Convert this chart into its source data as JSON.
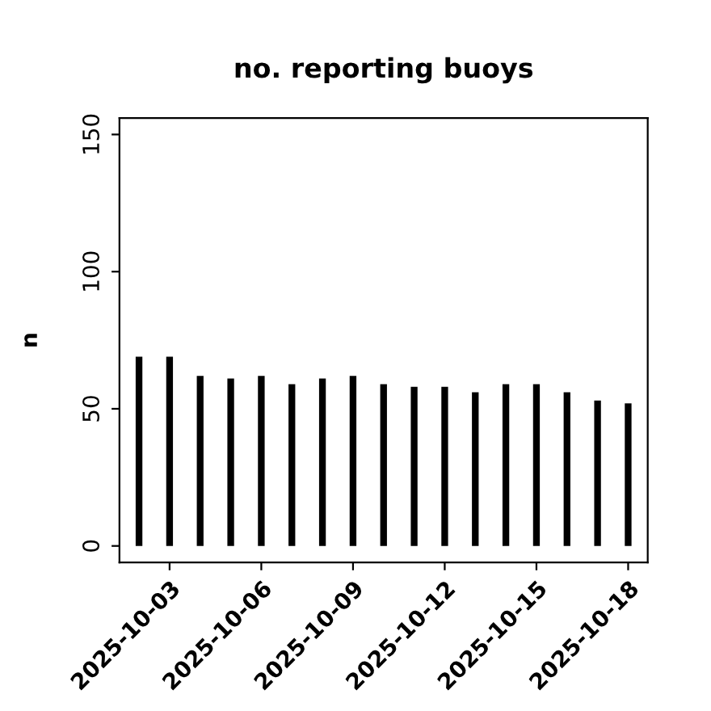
{
  "chart_data": {
    "type": "bar",
    "title": "no. reporting buoys",
    "ylabel": "n",
    "x": [
      "2025-10-02",
      "2025-10-03",
      "2025-10-04",
      "2025-10-05",
      "2025-10-06",
      "2025-10-07",
      "2025-10-08",
      "2025-10-09",
      "2025-10-10",
      "2025-10-11",
      "2025-10-12",
      "2025-10-13",
      "2025-10-14",
      "2025-10-15",
      "2025-10-16",
      "2025-10-17",
      "2025-10-18"
    ],
    "values": [
      69,
      69,
      62,
      61,
      62,
      59,
      61,
      62,
      59,
      58,
      58,
      56,
      59,
      59,
      56,
      53,
      52
    ],
    "color": "#000000",
    "xlim": [
      "2025-10-01T08:38",
      "2025-10-18T15:22"
    ],
    "xticks": [
      {
        "value": "2025-10-03",
        "label": "2025-10-03"
      },
      {
        "value": "2025-10-06",
        "label": "2025-10-06"
      },
      {
        "value": "2025-10-09",
        "label": "2025-10-09"
      },
      {
        "value": "2025-10-12",
        "label": "2025-10-12"
      },
      {
        "value": "2025-10-15",
        "label": "2025-10-15"
      },
      {
        "value": "2025-10-18",
        "label": "2025-10-18"
      }
    ],
    "ylim": [
      -6,
      156
    ],
    "yticks": [
      0,
      50,
      100,
      150
    ],
    "grid": false,
    "legend": false
  }
}
